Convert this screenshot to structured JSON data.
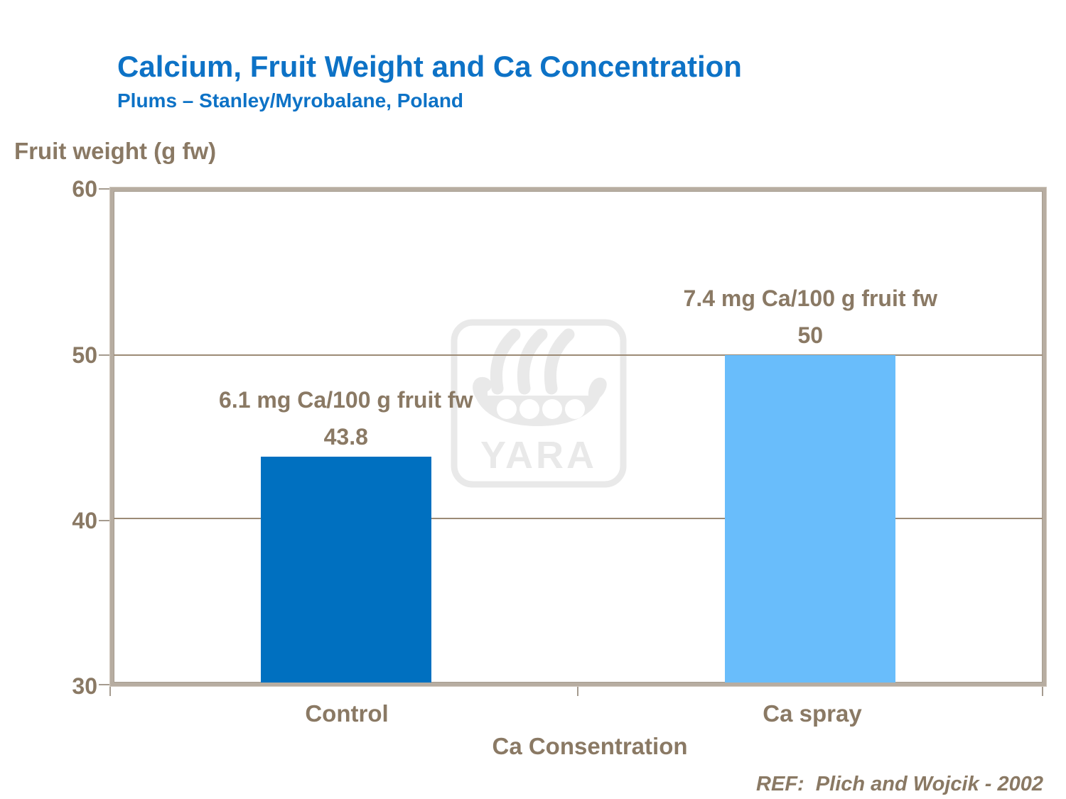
{
  "slide": {
    "reference": "REF:  Plich and Wojcik - 2002",
    "watermark_logo": "yara-viking-ship-logo"
  },
  "chart_data": {
    "type": "bar",
    "title": "Calcium, Fruit Weight and Ca Concentration",
    "subtitle": "Plums – Stanley/Myrobalane, Poland",
    "categories": [
      "Control",
      "Ca spray"
    ],
    "values": [
      43.8,
      50
    ],
    "value_labels": [
      "43.8",
      "50"
    ],
    "annotations": [
      "6.1 mg Ca/100 g fruit fw",
      "7.4 mg Ca/100 g fruit fw"
    ],
    "xlabel": "Ca Consentration",
    "ylabel": "Fruit weight (g fw)",
    "ylim": [
      30,
      60
    ],
    "yticks": [
      60,
      50,
      40,
      30
    ],
    "gridline_values": [
      50,
      40
    ],
    "grid": true,
    "legend_position": "none",
    "bar_colors": [
      "#0070C0",
      "#69BDFB"
    ],
    "watermark_text": "YARA"
  },
  "colors": {
    "title_blue": "#0D72C6",
    "axis_text_brown": "#8A7964",
    "plot_border": "#B7ADA1",
    "gridline": "#9C8B76",
    "watermark_gray": "#E9E9E9",
    "bar_control": "#0070C0",
    "bar_ca_spray": "#69BDFB"
  }
}
